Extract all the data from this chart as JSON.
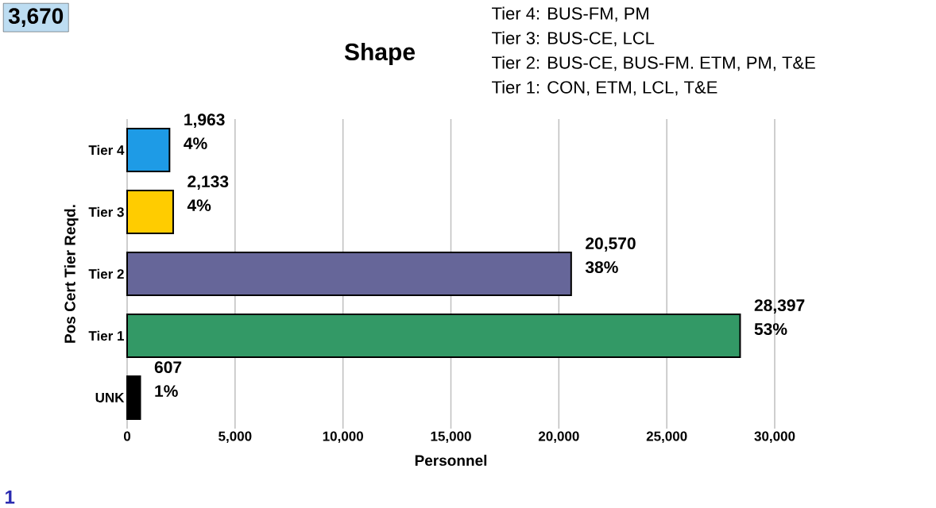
{
  "chart_data": {
    "type": "bar",
    "orientation": "horizontal",
    "title": "Shape",
    "xlabel": "Personnel",
    "ylabel": "Pos Cert Tier Reqd.",
    "categories": [
      "Tier 4",
      "Tier 3",
      "Tier 2",
      "Tier 1",
      "UNK"
    ],
    "values": [
      1963,
      2133,
      20570,
      28397,
      607
    ],
    "colors": [
      "#1e9be6",
      "#ffcc00",
      "#666699",
      "#339966",
      "#000000"
    ],
    "value_labels": [
      "1,963 4%",
      "2,133 4%",
      "20,570 38%",
      "28,397 53%",
      "607 1%"
    ],
    "xlim": [
      0,
      30000
    ],
    "xticks": [
      0,
      {
        "value": 5000,
        "label": "5,000"
      },
      {
        "value": 10000,
        "label": "10,000"
      },
      {
        "value": 15000,
        "label": "15,000"
      },
      {
        "value": 20000,
        "label": "20,000"
      },
      {
        "value": 25000,
        "label": "25,000"
      },
      {
        "value": 30000,
        "label": "30,000"
      }
    ],
    "grid": "x",
    "annotations": [
      "Tier 4: BUS-FM, PM",
      "Tier 3: BUS-CE, LCL",
      "Tier 2: BUS-CE, BUS-FM. ETM, PM, T&E",
      "Tier 1: CON, ETM, LCL, T&E",
      "3,670",
      "1"
    ]
  }
}
